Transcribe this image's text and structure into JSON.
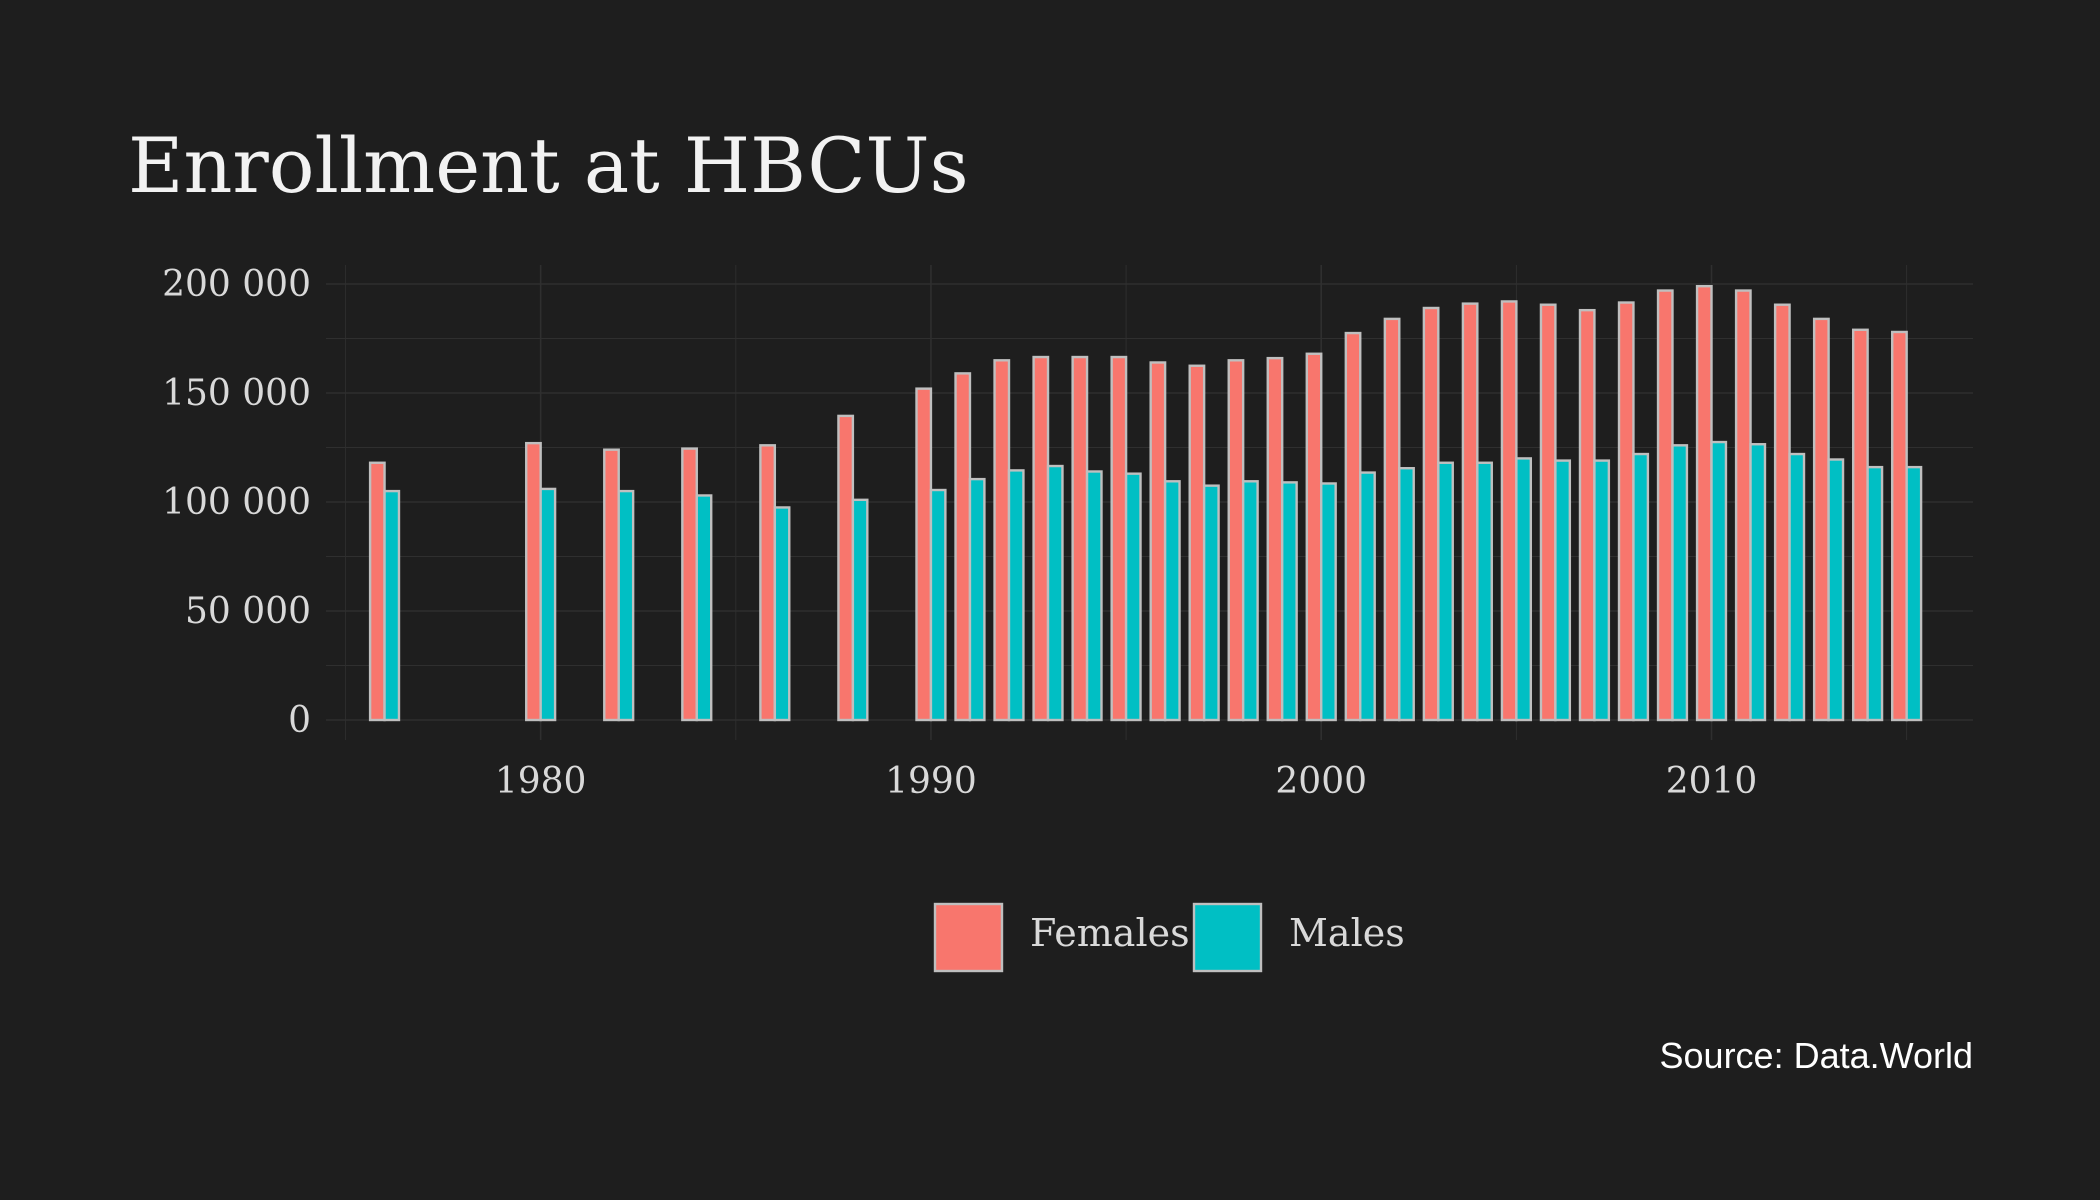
{
  "chart_data": {
    "type": "bar",
    "title": "Enrollment at HBCUs",
    "caption": "Source: Data.World",
    "xlabel": "",
    "ylabel": "",
    "x": [
      1976,
      1980,
      1982,
      1984,
      1986,
      1988,
      1990,
      1991,
      1992,
      1993,
      1994,
      1995,
      1996,
      1997,
      1998,
      1999,
      2000,
      2001,
      2002,
      2003,
      2004,
      2005,
      2006,
      2007,
      2008,
      2009,
      2010,
      2011,
      2012,
      2013,
      2014,
      2015
    ],
    "series": [
      {
        "name": "Females",
        "color": "#f8766d",
        "values": [
          118000,
          127000,
          124000,
          124500,
          126000,
          139500,
          152000,
          159000,
          165000,
          166500,
          166500,
          166500,
          164000,
          162500,
          165000,
          166000,
          168000,
          177500,
          184000,
          189000,
          191000,
          192000,
          190500,
          188000,
          191500,
          197000,
          199000,
          197000,
          190500,
          184000,
          179000,
          178000
        ]
      },
      {
        "name": "Males",
        "color": "#00bfc4",
        "values": [
          105000,
          106000,
          105000,
          103000,
          97500,
          101000,
          105500,
          110500,
          114500,
          116500,
          114000,
          113000,
          109500,
          107500,
          109500,
          109000,
          108500,
          113500,
          115500,
          118000,
          118000,
          120000,
          119000,
          119000,
          122000,
          126000,
          127500,
          126500,
          122000,
          119500,
          116000,
          116000
        ]
      }
    ],
    "xlim": [
      1974.5,
      2016.7
    ],
    "ylim": [
      0,
      200000
    ],
    "y_ticks": [
      0,
      50000,
      100000,
      150000,
      200000
    ],
    "y_tick_labels": [
      "0",
      "50 000",
      "100 000",
      "150 000",
      "200 000"
    ],
    "x_ticks": [
      1980,
      1990,
      2000,
      2010
    ],
    "x_tick_labels": [
      "1980",
      "1990",
      "2000",
      "2010"
    ],
    "grid": true,
    "legend_position": "bottom",
    "bar_outline_color": "#bfbfbf",
    "background_color": "#1e1e1e",
    "grid_color": "#2f2f2f"
  }
}
